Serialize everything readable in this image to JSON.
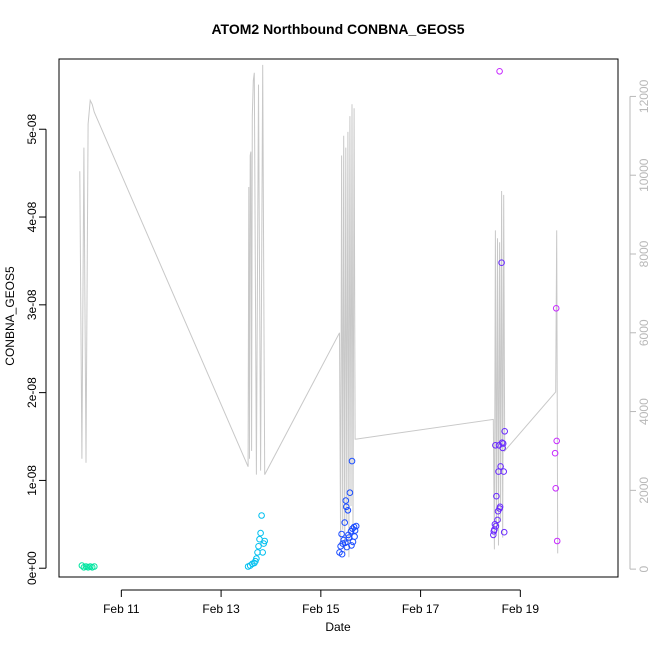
{
  "chart_data": {
    "type": "scatter",
    "title": "ATOM2 Northbound CONBNA_GEOS5",
    "xlabel": "Date",
    "ylabel": "CONBNA_GEOS5",
    "xlim": [
      "2016-02-09T18:00",
      "2016-02-20T23:00"
    ],
    "ylim": [
      -1e-09,
      5.8e-08
    ],
    "y2lim": [
      -200,
      12950
    ],
    "x_ticks": [
      {
        "date": "2016-02-11",
        "label": "Feb 11"
      },
      {
        "date": "2016-02-13",
        "label": "Feb 13"
      },
      {
        "date": "2016-02-15",
        "label": "Feb 15"
      },
      {
        "date": "2016-02-17",
        "label": "Feb 17"
      },
      {
        "date": "2016-02-19",
        "label": "Feb 19"
      }
    ],
    "y_ticks": [
      {
        "value": 0,
        "label": "0e+00"
      },
      {
        "value": 1e-08,
        "label": "1e-08"
      },
      {
        "value": 2e-08,
        "label": "2e-08"
      },
      {
        "value": 3e-08,
        "label": "3e-08"
      },
      {
        "value": 4e-08,
        "label": "4e-08"
      },
      {
        "value": 5e-08,
        "label": "5e-08"
      }
    ],
    "y2_ticks": [
      {
        "value": 0,
        "label": "0"
      },
      {
        "value": 2000,
        "label": "2000"
      },
      {
        "value": 4000,
        "label": "4000"
      },
      {
        "value": 6000,
        "label": "6000"
      },
      {
        "value": 8000,
        "label": "8000"
      },
      {
        "value": 10000,
        "label": "10000"
      },
      {
        "value": 12000,
        "label": "12000"
      }
    ],
    "colors": {
      "altitude_line": "#c8c8c8",
      "axis": "#000000",
      "right_axis": "#b8b8b8"
    },
    "altitude_series": {
      "x": [
        "2016-02-10T04:00",
        "2016-02-10T05:00",
        "2016-02-10T06:00",
        "2016-02-10T07:00",
        "2016-02-10T08:00",
        "2016-02-10T09:00",
        "2016-02-10T10:00",
        "2016-02-10T11:00",
        "2016-02-13T13:00",
        "2016-02-13T13:20",
        "2016-02-13T13:40",
        "2016-02-13T14:00",
        "2016-02-13T14:20",
        "2016-02-13T14:40",
        "2016-02-13T15:00",
        "2016-02-13T15:30",
        "2016-02-13T16:00",
        "2016-02-13T17:00",
        "2016-02-13T18:00",
        "2016-02-13T19:00",
        "2016-02-13T20:00",
        "2016-02-13T21:00",
        "2016-02-15T09:00",
        "2016-02-15T09:30",
        "2016-02-15T10:00",
        "2016-02-15T10:30",
        "2016-02-15T11:00",
        "2016-02-15T11:30",
        "2016-02-15T12:00",
        "2016-02-15T12:30",
        "2016-02-15T13:00",
        "2016-02-15T13:30",
        "2016-02-15T14:00",
        "2016-02-15T14:30",
        "2016-02-15T15:00",
        "2016-02-15T15:30",
        "2016-02-15T16:00",
        "2016-02-15T16:30",
        "2016-02-15T17:00",
        "2016-02-18T11:00",
        "2016-02-18T11:30",
        "2016-02-18T12:00",
        "2016-02-18T12:30",
        "2016-02-18T13:00",
        "2016-02-18T13:30",
        "2016-02-18T14:00",
        "2016-02-18T14:30",
        "2016-02-18T15:00",
        "2016-02-18T15:30",
        "2016-02-18T16:00",
        "2016-02-18T16:30",
        "2016-02-19T17:00",
        "2016-02-19T17:30",
        "2016-02-19T18:00"
      ],
      "y": [
        10100,
        2800,
        10700,
        2700,
        11300,
        11900,
        11800,
        11600,
        2600,
        9700,
        2800,
        10500,
        10600,
        3000,
        11500,
        12400,
        12600,
        2400,
        12300,
        2500,
        12800,
        2400,
        6000,
        600,
        10500,
        1000,
        11000,
        400,
        10700,
        1200,
        11100,
        300,
        11500,
        1600,
        11800,
        900,
        11700,
        3300,
        3300,
        3800,
        500,
        8600,
        900,
        8400,
        600,
        8300,
        1200,
        9600,
        800,
        9500,
        3000,
        4500,
        8600,
        400
      ]
    },
    "series": [
      {
        "color": "#00e5a0",
        "x": [
          "2016-02-10T05:00",
          "2016-02-10T06:00",
          "2016-02-10T07:00",
          "2016-02-10T08:00",
          "2016-02-10T09:00",
          "2016-02-10T10:00",
          "2016-02-10T11:00"
        ],
        "y": [
          3e-10,
          1e-10,
          2e-10,
          1e-10,
          2e-10,
          1e-10,
          2e-10
        ]
      },
      {
        "color": "#00c0f0",
        "x": [
          "2016-02-13T13:00",
          "2016-02-13T14:00",
          "2016-02-13T15:00",
          "2016-02-13T16:00",
          "2016-02-13T16:30",
          "2016-02-13T17:00",
          "2016-02-13T17:30",
          "2016-02-13T18:00",
          "2016-02-13T18:30",
          "2016-02-13T19:00",
          "2016-02-13T19:30",
          "2016-02-13T20:00",
          "2016-02-13T20:30",
          "2016-02-13T21:00"
        ],
        "y": [
          2e-10,
          3e-10,
          5e-10,
          6e-10,
          8e-10,
          1.1e-09,
          1.8e-09,
          2.5e-09,
          3.3e-09,
          4e-09,
          6e-09,
          1.8e-09,
          2.8e-09,
          3.1e-09
        ]
      },
      {
        "color": "#1a4cff",
        "x": [
          "2016-02-15T09:00",
          "2016-02-15T09:30",
          "2016-02-15T10:00",
          "2016-02-15T10:30",
          "2016-02-15T11:00",
          "2016-02-15T11:30",
          "2016-02-15T12:00",
          "2016-02-15T12:30",
          "2016-02-15T13:00",
          "2016-02-15T13:30",
          "2016-02-15T14:00",
          "2016-02-15T14:30",
          "2016-02-15T15:00",
          "2016-02-15T15:30",
          "2016-02-15T16:00",
          "2016-02-15T16:30",
          "2016-02-15T17:00",
          "2016-02-15T10:15",
          "2016-02-15T11:45",
          "2016-02-15T13:15",
          "2016-02-15T14:45",
          "2016-02-15T16:15",
          "2016-02-15T12:15",
          "2016-02-15T15:15"
        ],
        "y": [
          1.8e-09,
          2.5e-09,
          3.9e-09,
          2.8e-09,
          3.2e-09,
          5.2e-09,
          7.7e-09,
          2.4e-09,
          6.6e-09,
          3.5e-09,
          8.6e-09,
          4.2e-09,
          1.22e-08,
          3e-09,
          4.7e-09,
          4.3e-09,
          4.8e-09,
          1.6e-09,
          2.9e-09,
          3.8e-09,
          2.6e-09,
          3.6e-09,
          7e-09,
          4.5e-09
        ]
      },
      {
        "color": "#6a2bff",
        "x": [
          "2016-02-18T11:00",
          "2016-02-18T11:30",
          "2016-02-18T12:00",
          "2016-02-18T12:30",
          "2016-02-18T13:00",
          "2016-02-18T13:30",
          "2016-02-18T14:00",
          "2016-02-18T14:30",
          "2016-02-18T15:00",
          "2016-02-18T15:30",
          "2016-02-18T16:00",
          "2016-02-18T16:30",
          "2016-02-18T11:15",
          "2016-02-18T12:15",
          "2016-02-18T13:15",
          "2016-02-18T14:15",
          "2016-02-18T15:15",
          "2016-02-18T16:15",
          "2016-02-18T11:45",
          "2016-02-18T13:45",
          "2016-02-18T15:45"
        ],
        "y": [
          3.8e-09,
          4.4e-09,
          1.4e-08,
          8.2e-09,
          5.5e-09,
          1.1e-08,
          6.8e-09,
          1.16e-08,
          3.48e-08,
          1.37e-08,
          1.1e-08,
          1.56e-08,
          4.2e-09,
          4.8e-09,
          6.5e-09,
          7e-09,
          1.43e-08,
          4.1e-09,
          5e-09,
          1.4e-08,
          1.42e-08
        ]
      },
      {
        "color": "#c72bff",
        "x": [
          "2016-02-18T14:00",
          "2016-02-19T16:45",
          "2016-02-19T17:00",
          "2016-02-19T17:15",
          "2016-02-19T17:30",
          "2016-02-19T17:45"
        ],
        "y": [
          5.66e-08,
          1.31e-08,
          9.1e-09,
          2.96e-08,
          1.45e-08,
          3.1e-09
        ]
      }
    ]
  }
}
